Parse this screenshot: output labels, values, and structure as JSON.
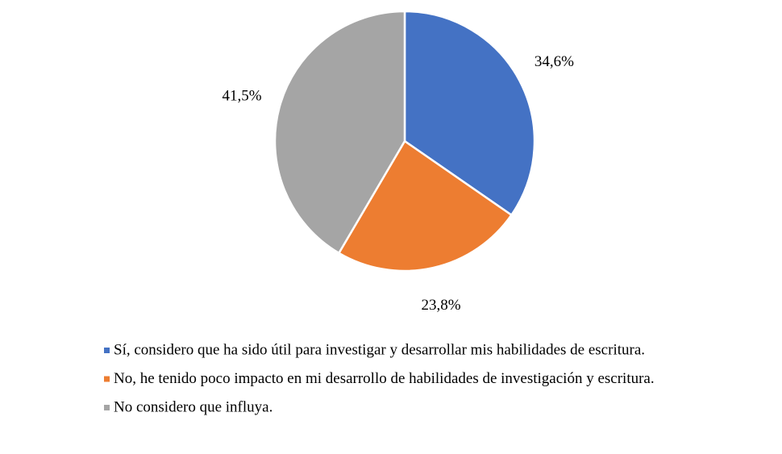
{
  "chart_data": {
    "type": "pie",
    "categories": [
      "Sí, considero que ha sido útil para investigar y desarrollar mis habilidades de escritura.",
      "No, he tenido poco impacto en mi desarrollo de habilidades de investigación y escritura.",
      "No considero que influya."
    ],
    "values": [
      34.6,
      23.8,
      41.5
    ],
    "value_labels": [
      "34,6%",
      "23,8%",
      "41,5%"
    ],
    "colors": [
      "#4472c4",
      "#ed7d31",
      "#a5a5a5"
    ],
    "legend": "bottom"
  }
}
